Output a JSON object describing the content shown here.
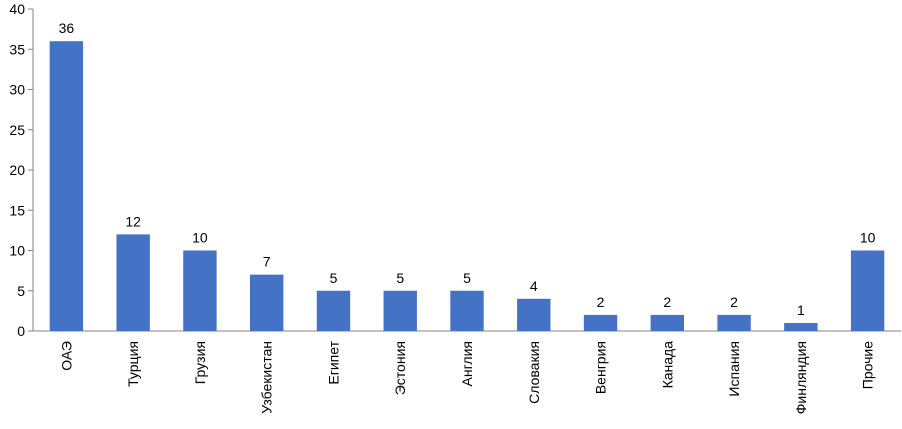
{
  "chart_data": {
    "type": "bar",
    "categories": [
      "ОАЭ",
      "Турция",
      "Грузия",
      "Узбекистан",
      "Египет",
      "Эстония",
      "Англия",
      "Словакия",
      "Венгрия",
      "Канада",
      "Испания",
      "Финляндия",
      "Прочие"
    ],
    "values": [
      36,
      12,
      10,
      7,
      5,
      5,
      5,
      4,
      2,
      2,
      2,
      1,
      10
    ],
    "color": "#4472c4",
    "ylim": [
      0,
      40
    ],
    "yticks": [
      0,
      5,
      10,
      15,
      20,
      25,
      30,
      35,
      40
    ],
    "grid": false
  }
}
